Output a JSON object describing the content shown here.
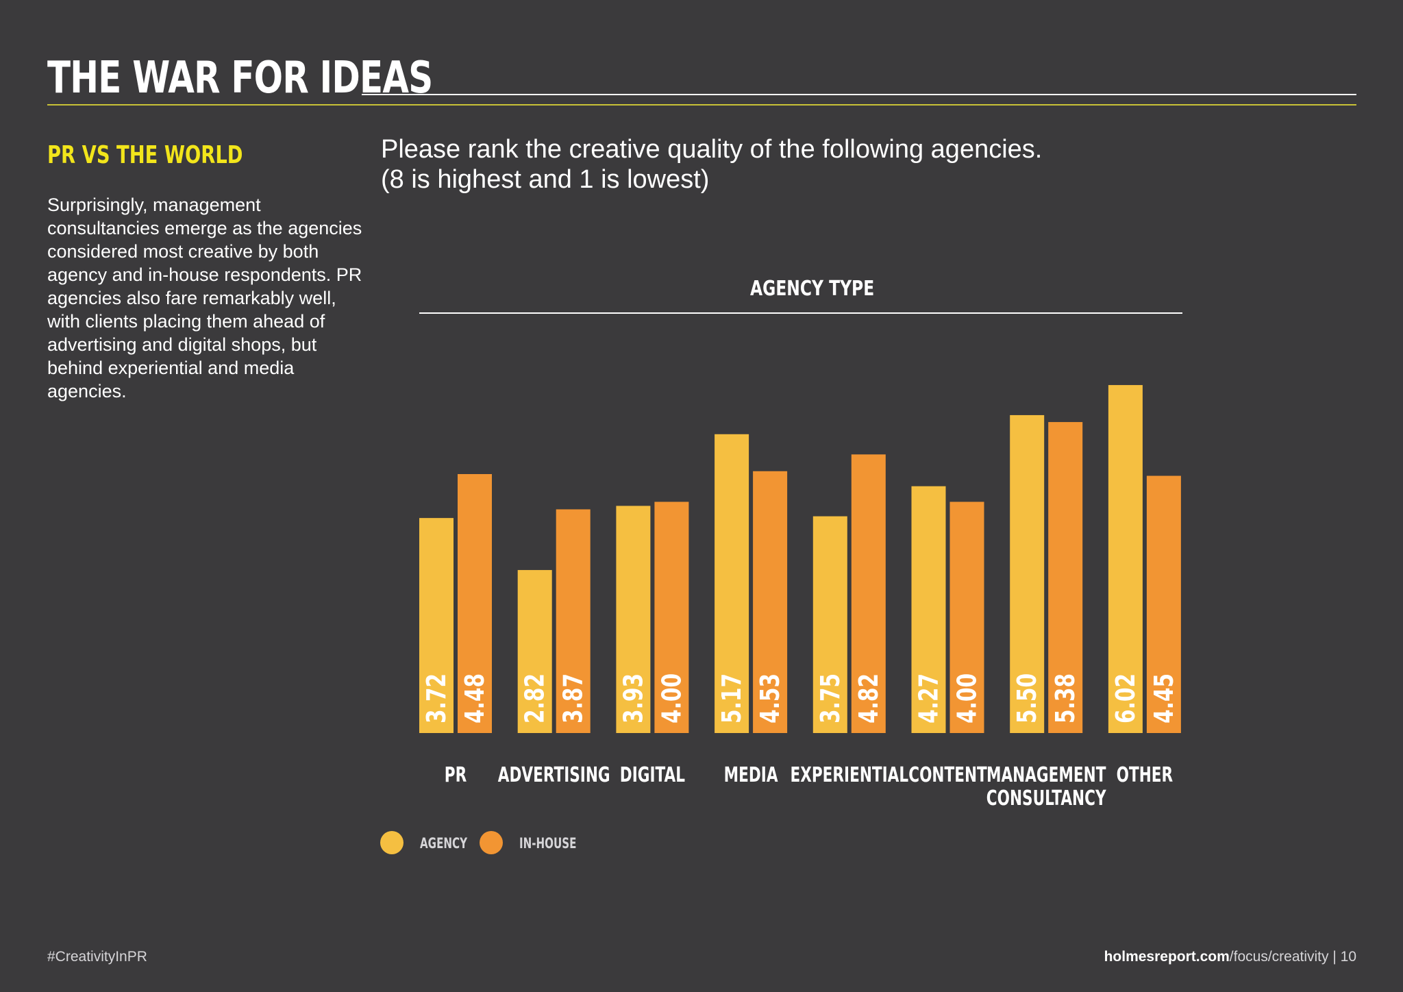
{
  "page": {
    "title": "THE WAR FOR IDEAS",
    "section_heading": "PR VS THE WORLD",
    "body": "Surprisingly, management consultancies emerge as the agencies considered most creative by both agency and in-house respondents. PR agencies also fare remarkably well, with clients placing them ahead of advertising and digital shops, but behind experiential and media agencies.",
    "question_line1": "Please rank the creative quality of the following agencies.",
    "question_line2": "(8 is highest and 1 is lowest)",
    "footer_left": "#CreativityInPR",
    "footer_right_bold": "holmesreport.com",
    "footer_right_rest": "/focus/creativity | 10"
  },
  "colors": {
    "background": "#3b3a3c",
    "accent_yellow": "#f2e51b",
    "agency": "#f5bf41",
    "in_house": "#f29533"
  },
  "chart_data": {
    "type": "bar",
    "title": "AGENCY TYPE",
    "categories": [
      [
        "PR"
      ],
      [
        "ADVERTISING"
      ],
      [
        "DIGITAL"
      ],
      [
        "MEDIA"
      ],
      [
        "EXPERIENTIAL"
      ],
      [
        "CONTENT"
      ],
      [
        "MANAGEMENT",
        "CONSULTANCY"
      ],
      [
        "OTHER"
      ]
    ],
    "series": [
      {
        "name": "AGENCY",
        "color": "#f5bf41",
        "values": [
          3.72,
          2.82,
          3.93,
          5.17,
          3.75,
          4.27,
          5.5,
          6.02
        ],
        "labels": [
          "3.72",
          "2.82",
          "3.93",
          "5.17",
          "3.75",
          "4.27",
          "5.50",
          "6.02"
        ]
      },
      {
        "name": "IN-HOUSE",
        "color": "#f29533",
        "values": [
          4.48,
          3.87,
          4.0,
          4.53,
          4.82,
          4.0,
          5.38,
          4.45
        ],
        "labels": [
          "4.48",
          "3.87",
          "4.00",
          "4.53",
          "4.82",
          "4.00",
          "5.38",
          "4.45"
        ]
      }
    ],
    "ylim": [
      0,
      8
    ],
    "grid": false,
    "legend": "bottom-left"
  }
}
